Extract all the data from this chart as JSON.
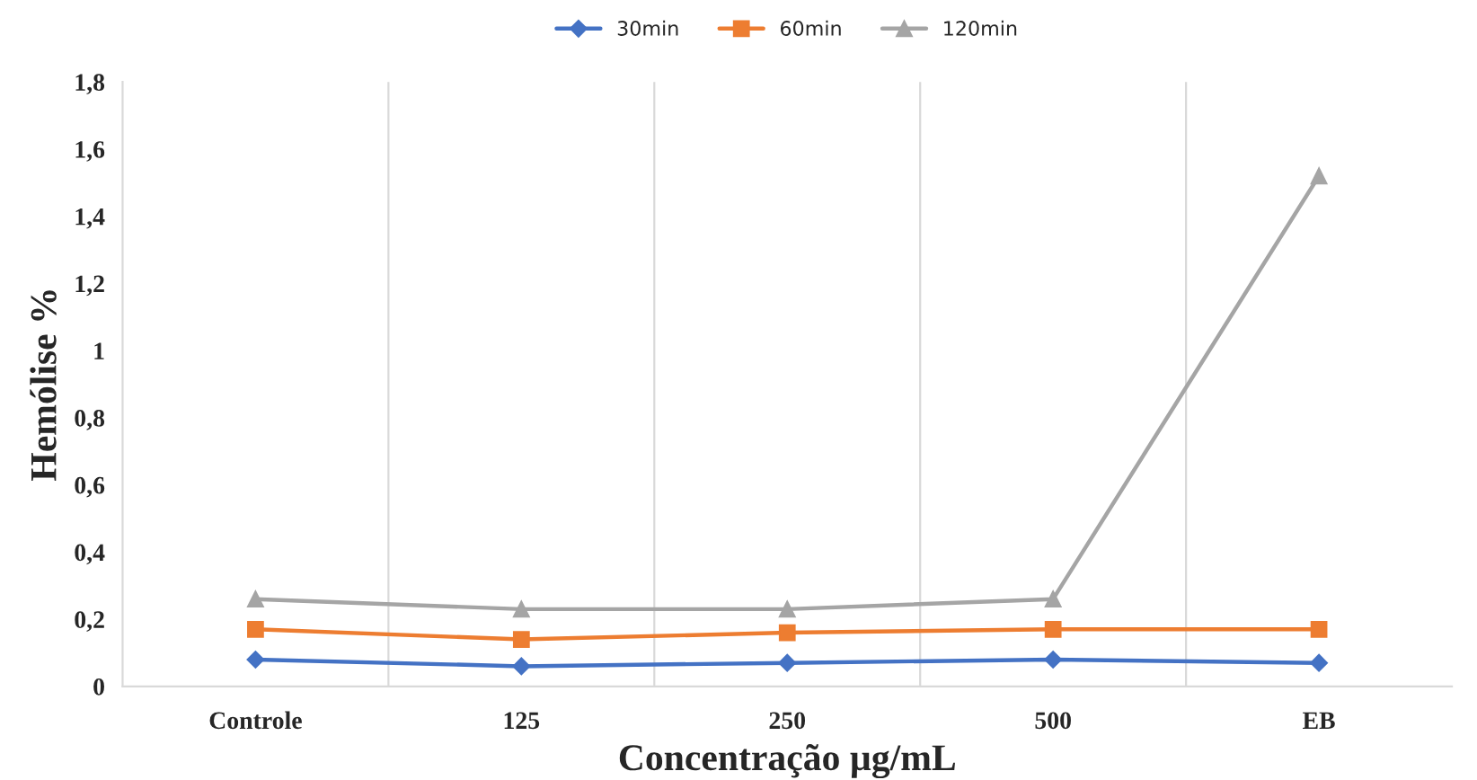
{
  "chart_data": {
    "type": "line",
    "xlabel": "Concentração µg/mL",
    "ylabel": "Hemólise %",
    "categories": [
      "Controle",
      "125",
      "250",
      "500",
      "EB"
    ],
    "series": [
      {
        "name": "30min",
        "color": "#4472c4",
        "marker": "diamond",
        "values": [
          0.08,
          0.06,
          0.07,
          0.08,
          0.07
        ]
      },
      {
        "name": "60min",
        "color": "#ed7d31",
        "marker": "square",
        "values": [
          0.17,
          0.14,
          0.16,
          0.17,
          0.17
        ]
      },
      {
        "name": "120min",
        "color": "#a5a5a5",
        "marker": "triangle",
        "values": [
          0.26,
          0.23,
          0.23,
          0.26,
          1.52
        ]
      }
    ],
    "ylim": [
      0,
      1.8
    ],
    "yticks": [
      0,
      {
        "value": 0.2,
        "label": "0,2"
      },
      {
        "value": 0.4,
        "label": "0,4"
      },
      {
        "value": 0.6,
        "label": "0,6"
      },
      {
        "value": 0.8,
        "label": "0,8"
      },
      1,
      {
        "value": 1.2,
        "label": "1,2"
      },
      {
        "value": 1.4,
        "label": "1,4"
      },
      {
        "value": 1.6,
        "label": "1,6"
      },
      {
        "value": 1.8,
        "label": "1,8"
      }
    ],
    "grid": "x",
    "legend": "top",
    "line_style": "solid"
  }
}
